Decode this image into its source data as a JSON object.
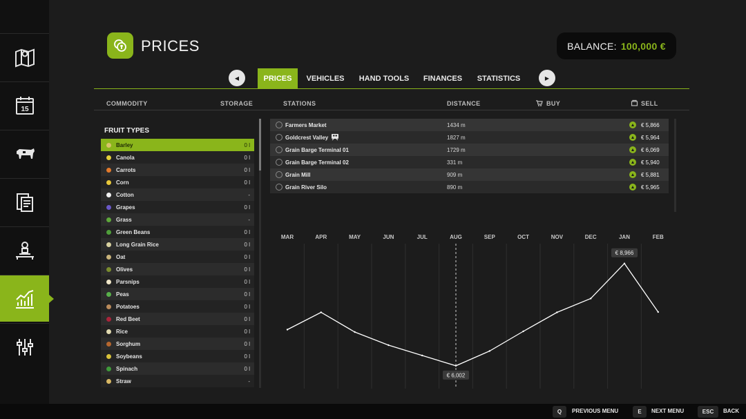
{
  "header": {
    "title": "PRICES",
    "balance_label": "BALANCE:",
    "balance_value": "100,000 €"
  },
  "colors": {
    "accent": "#8ab51b",
    "background": "#1c1c1c",
    "sidebar": "#111111"
  },
  "sidebar": {
    "items": [
      {
        "icon": "map-icon"
      },
      {
        "icon": "calendar-icon",
        "text": "15"
      },
      {
        "icon": "cow-icon"
      },
      {
        "icon": "contracts-icon"
      },
      {
        "icon": "production-icon"
      },
      {
        "icon": "prices-chart-icon",
        "active": true
      },
      {
        "icon": "settings-sliders-icon"
      }
    ]
  },
  "tabs": {
    "prev": "◀",
    "next": "▶",
    "items": [
      {
        "label": "PRICES",
        "active": true
      },
      {
        "label": "VEHICLES"
      },
      {
        "label": "HAND TOOLS"
      },
      {
        "label": "FINANCES"
      },
      {
        "label": "STATISTICS"
      }
    ]
  },
  "columns": {
    "commodity": "COMMODITY",
    "storage": "STORAGE",
    "stations": "STATIONS",
    "distance": "DISTANCE",
    "buy": "BUY",
    "sell": "SELL"
  },
  "fruit_list": {
    "title": "FRUIT TYPES",
    "items": [
      {
        "name": "Barley",
        "storage": "0 l",
        "color": "#d7c36a",
        "selected": true
      },
      {
        "name": "Canola",
        "storage": "0 l",
        "color": "#e3cf3a"
      },
      {
        "name": "Carrots",
        "storage": "0 l",
        "color": "#e37a2b"
      },
      {
        "name": "Corn",
        "storage": "0 l",
        "color": "#e8c83a"
      },
      {
        "name": "Cotton",
        "storage": "-",
        "color": "#f2f2f2"
      },
      {
        "name": "Grapes",
        "storage": "0 l",
        "color": "#6a58c7"
      },
      {
        "name": "Grass",
        "storage": "-",
        "color": "#5ea83a"
      },
      {
        "name": "Green Beans",
        "storage": "0 l",
        "color": "#4f9e3a"
      },
      {
        "name": "Long Grain Rice",
        "storage": "0 l",
        "color": "#d9d2a0"
      },
      {
        "name": "Oat",
        "storage": "0 l",
        "color": "#c9b37a"
      },
      {
        "name": "Olives",
        "storage": "0 l",
        "color": "#7a8c2e"
      },
      {
        "name": "Parsnips",
        "storage": "0 l",
        "color": "#efe6c8"
      },
      {
        "name": "Peas",
        "storage": "0 l",
        "color": "#58b04a"
      },
      {
        "name": "Potatoes",
        "storage": "0 l",
        "color": "#b98a5a"
      },
      {
        "name": "Red Beet",
        "storage": "0 l",
        "color": "#a8243a"
      },
      {
        "name": "Rice",
        "storage": "0 l",
        "color": "#e0d9b0"
      },
      {
        "name": "Sorghum",
        "storage": "0 l",
        "color": "#b5662e"
      },
      {
        "name": "Soybeans",
        "storage": "0 l",
        "color": "#d8c23a"
      },
      {
        "name": "Spinach",
        "storage": "0 l",
        "color": "#3f9a3a"
      },
      {
        "name": "Straw",
        "storage": "-",
        "color": "#d8b864"
      }
    ]
  },
  "stations": [
    {
      "name": "Farmers Market",
      "distance": "1434 m",
      "sell": "€ 5,866"
    },
    {
      "name": "Goldcrest Valley",
      "distance": "1827 m",
      "sell": "€ 5,964",
      "train": true
    },
    {
      "name": "Grain Barge Terminal 01",
      "distance": "1729 m",
      "sell": "€ 6,069"
    },
    {
      "name": "Grain Barge Terminal 02",
      "distance": "331 m",
      "sell": "€ 5,940"
    },
    {
      "name": "Grain Mill",
      "distance": "909 m",
      "sell": "€ 5,881"
    },
    {
      "name": "Grain River Silo",
      "distance": "890 m",
      "sell": "€ 5,965"
    }
  ],
  "chart_data": {
    "type": "line",
    "categories": [
      "MAR",
      "APR",
      "MAY",
      "JUN",
      "JUL",
      "AUG",
      "SEP",
      "OCT",
      "NOV",
      "DEC",
      "JAN",
      "FEB"
    ],
    "series": [
      {
        "values": [
          7050,
          7550,
          6980,
          6600,
          6300,
          6002,
          6430,
          7000,
          7550,
          7950,
          8966,
          7560
        ]
      }
    ],
    "ylim": [
      5600,
      9500
    ],
    "current_month": "AUG",
    "annotations": [
      {
        "category": "JAN",
        "label": "€ 8,966"
      },
      {
        "category": "AUG",
        "label": "€ 6,002"
      }
    ],
    "grid": true,
    "line_color": "#ffffff"
  },
  "footer": {
    "buttons": [
      {
        "key": "Q",
        "label": "PREVIOUS MENU"
      },
      {
        "key": "E",
        "label": "NEXT MENU"
      },
      {
        "key": "ESC",
        "label": "BACK"
      }
    ]
  }
}
